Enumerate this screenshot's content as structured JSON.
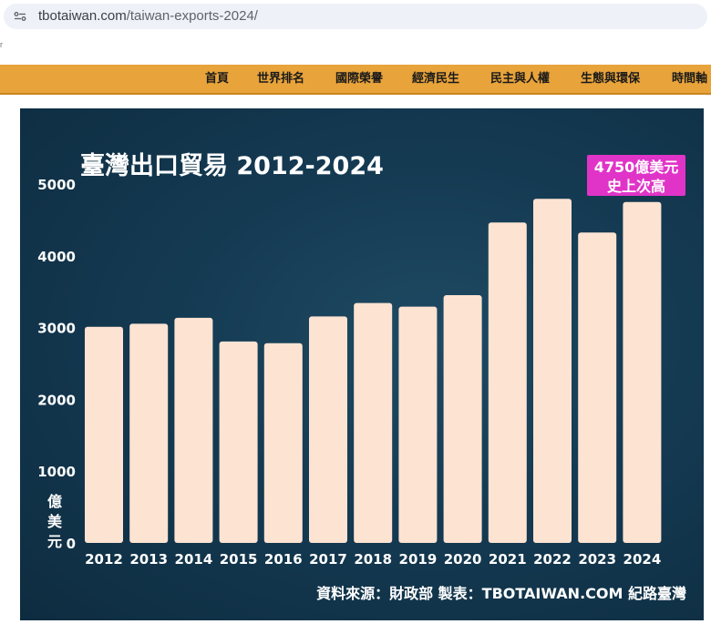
{
  "browser": {
    "url_domain": "tbotaiwan.com",
    "url_path": "/taiwan-exports-2024/",
    "site_icon": "site-settings-icon",
    "stray_mark": "r"
  },
  "nav": {
    "items": [
      "首頁",
      "世界排名",
      "國際榮譽",
      "經濟民生",
      "民主與人權",
      "生態與環保",
      "時間軸"
    ]
  },
  "chart_data": {
    "type": "bar",
    "title": "臺灣出口貿易 2012-2024",
    "ylabel": "億美元",
    "xlabel": "",
    "categories": [
      "2012",
      "2013",
      "2014",
      "2015",
      "2016",
      "2017",
      "2018",
      "2019",
      "2020",
      "2021",
      "2022",
      "2023",
      "2024"
    ],
    "values": [
      3011,
      3054,
      3136,
      2806,
      2782,
      3155,
      3343,
      3291,
      3451,
      4464,
      4794,
      4324,
      4750
    ],
    "ylim": [
      0,
      5000
    ],
    "yticks": [
      0,
      1000,
      2000,
      3000,
      4000,
      5000
    ],
    "grid": false,
    "annotation": {
      "line1": "4750億美元",
      "line2": "史上次高"
    },
    "source": "資料來源：財政部  製表：TBOTAIWAN.COM 紀路臺灣",
    "colors": {
      "bar": "#fde3d2",
      "background": "#143a52",
      "annotation_bg": "#e034c8",
      "text": "#ffffff"
    }
  }
}
